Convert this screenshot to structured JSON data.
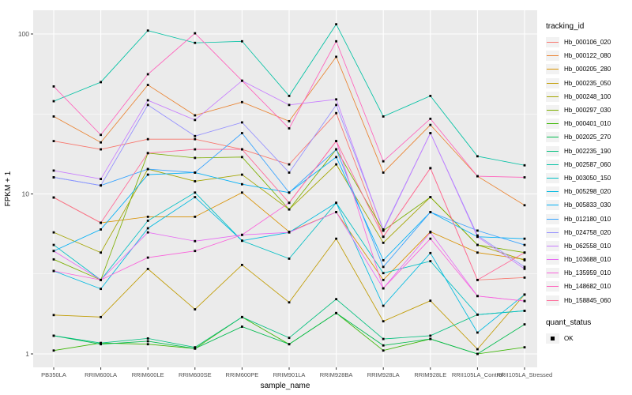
{
  "chart_data": {
    "type": "line",
    "title": "",
    "xlabel": "sample_name",
    "ylabel": "FPKM + 1",
    "y_scale": "log10",
    "y_ticks": [
      1,
      10,
      100
    ],
    "ylim": [
      1,
      130
    ],
    "grid": "on",
    "panel_bg": "#EBEBEB",
    "grid_color": "#FFFFFF",
    "tick_label_color": "#4D4D4D",
    "point_shape": "square",
    "point_color": "#000000",
    "legend_position": "right",
    "legend_title": "tracking_id",
    "legend2_title": "quant_status",
    "legend2_items": [
      {
        "label": "OK",
        "shape": "black-square"
      }
    ],
    "categories": [
      "PB350LA",
      "RRIM600LA",
      "RRIM600LE",
      "RRIM600SE",
      "RRIM600PE",
      "RRIM901LA",
      "RRIM928BA",
      "RRIM928LA",
      "RRIM928LE",
      "RRII105LA_Control",
      "RRII105LA_Stressed"
    ],
    "series": [
      {
        "name": "Hb_000106_020",
        "color": "#F8766D",
        "values": [
          21.4,
          19,
          22,
          22,
          19,
          15.3,
          32,
          5.4,
          14.5,
          2.9,
          3.0
        ]
      },
      {
        "name": "Hb_000122_080",
        "color": "#EA8331",
        "values": [
          30.5,
          21,
          48,
          31,
          37.5,
          28.5,
          72,
          13.6,
          27,
          12.9,
          8.5
        ]
      },
      {
        "name": "Hb_000205_280",
        "color": "#D89000",
        "values": [
          9.5,
          6.6,
          7.2,
          7.2,
          10.2,
          5.8,
          7.7,
          2.9,
          5.8,
          4.3,
          3.9
        ]
      },
      {
        "name": "Hb_000235_050",
        "color": "#C09B00",
        "values": [
          1.75,
          1.7,
          3.4,
          1.9,
          3.6,
          2.1,
          5.25,
          1.6,
          2.15,
          1.07,
          2.35
        ]
      },
      {
        "name": "Hb_000248_100",
        "color": "#A3A500",
        "values": [
          5.75,
          4.3,
          14.3,
          12,
          13.2,
          8.0,
          15.3,
          4.95,
          9.55,
          4.8,
          3.85
        ]
      },
      {
        "name": "Hb_000297_030",
        "color": "#7CAE00",
        "values": [
          3.9,
          2.9,
          18,
          16.8,
          17,
          8.0,
          19,
          5.9,
          9.55,
          4.8,
          4.3
        ]
      },
      {
        "name": "Hb_000401_010",
        "color": "#39B600",
        "values": [
          1.05,
          1.17,
          1.15,
          1.08,
          1.7,
          1.15,
          1.8,
          1.05,
          1.24,
          1.0,
          1.1
        ]
      },
      {
        "name": "Hb_002025_270",
        "color": "#00BB4E",
        "values": [
          1.3,
          1.15,
          1.2,
          1.08,
          1.48,
          1.15,
          1.8,
          1.13,
          1.24,
          1.0,
          1.53
        ]
      },
      {
        "name": "Hb_002235_190",
        "color": "#00BF7D",
        "values": [
          1.3,
          1.17,
          1.25,
          1.1,
          1.7,
          1.26,
          2.2,
          1.24,
          1.3,
          1.76,
          1.86
        ]
      },
      {
        "name": "Hb_002587_060",
        "color": "#00C1A3",
        "values": [
          38,
          50,
          105,
          88,
          90,
          41,
          115,
          30.5,
          41,
          17.2,
          15.1
        ]
      },
      {
        "name": "Hb_003050_150",
        "color": "#00BFC4",
        "values": [
          4.8,
          2.9,
          6.8,
          10.2,
          5.1,
          3.94,
          8.8,
          3.2,
          3.8,
          1.76,
          1.86
        ]
      },
      {
        "name": "Hb_005298_020",
        "color": "#00BAE0",
        "values": [
          3.3,
          2.55,
          6.1,
          9.55,
          5.1,
          5.75,
          8.8,
          2.0,
          4.27,
          1.36,
          2.35
        ]
      },
      {
        "name": "Hb_005833_030",
        "color": "#00B0F6",
        "values": [
          4.4,
          6.0,
          13.2,
          13.6,
          11.5,
          10.2,
          17,
          3.85,
          7.7,
          5.4,
          5.25
        ]
      },
      {
        "name": "Hb_012180_010",
        "color": "#35A2FF",
        "values": [
          12.7,
          11.3,
          14.3,
          13.6,
          24,
          10.2,
          19,
          3.5,
          7.7,
          5.9,
          4.8
        ]
      },
      {
        "name": "Hb_024758_020",
        "color": "#9590FF",
        "values": [
          12.7,
          11.3,
          36,
          23,
          28,
          13.6,
          36,
          6.0,
          24,
          5.5,
          3.5
        ]
      },
      {
        "name": "Hb_062558_010",
        "color": "#C77CFF",
        "values": [
          14,
          12.4,
          38.5,
          29,
          51,
          36,
          39,
          5.9,
          24,
          5.4,
          3.4
        ]
      },
      {
        "name": "Hb_103688_010",
        "color": "#E76BF3",
        "values": [
          4.4,
          2.9,
          5.75,
          5.07,
          5.55,
          5.75,
          7.7,
          2.57,
          5.75,
          2.3,
          2.14
        ]
      },
      {
        "name": "Hb_135959_010",
        "color": "#FA62DB",
        "values": [
          3.3,
          2.9,
          4.0,
          4.4,
          5.55,
          8.8,
          21.4,
          2.57,
          5.25,
          2.3,
          2.14
        ]
      },
      {
        "name": "Hb_148682_010",
        "color": "#FF62BC",
        "values": [
          47,
          23.4,
          56,
          101,
          51,
          25.7,
          90,
          16,
          29.5,
          12.9,
          12.7
        ]
      },
      {
        "name": "Hb_158845_060",
        "color": "#FF6A98",
        "values": [
          9.5,
          6.6,
          18,
          19,
          19,
          8.8,
          21.4,
          5.4,
          14.5,
          2.9,
          4.3
        ]
      }
    ]
  }
}
